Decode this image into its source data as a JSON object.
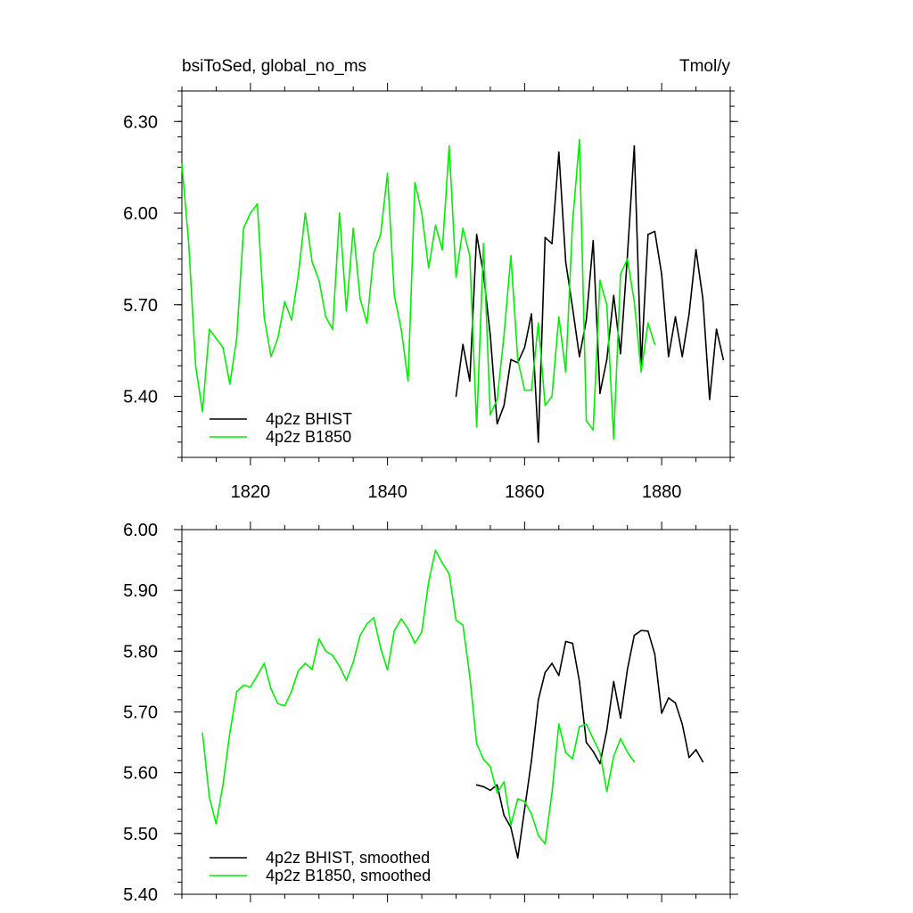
{
  "chart_data": [
    {
      "type": "line",
      "title": "bsiToSed, global_no_ms",
      "units": "Tmol/y",
      "xlim": [
        1810,
        1890
      ],
      "ylim": [
        5.2,
        6.4
      ],
      "x_ticks": [
        "1820",
        "1840",
        "1860",
        "1880"
      ],
      "y_ticks": [
        "5.40",
        "5.70",
        "6.00",
        "6.30"
      ],
      "grid": false,
      "legend_position": "bottom-left",
      "colors": {
        "4p2z BHIST": "#000000",
        "4p2z B1850": "#00ee00"
      },
      "series": [
        {
          "name": "4p2z BHIST",
          "x": [
            1850,
            1851,
            1852,
            1853,
            1854,
            1855,
            1856,
            1857,
            1858,
            1859,
            1860,
            1861,
            1862,
            1863,
            1864,
            1865,
            1866,
            1867,
            1868,
            1869,
            1870,
            1871,
            1872,
            1873,
            1874,
            1875,
            1876,
            1877,
            1878,
            1879,
            1880,
            1881,
            1882,
            1883,
            1884,
            1885,
            1886,
            1887,
            1888,
            1889
          ],
          "y": [
            5.4,
            5.57,
            5.45,
            5.93,
            5.8,
            5.6,
            5.31,
            5.37,
            5.52,
            5.51,
            5.56,
            5.67,
            5.25,
            5.92,
            5.9,
            6.2,
            5.84,
            5.69,
            5.53,
            5.65,
            5.91,
            5.41,
            5.52,
            5.73,
            5.54,
            5.86,
            6.22,
            5.5,
            5.93,
            5.94,
            5.8,
            5.53,
            5.66,
            5.53,
            5.67,
            5.88,
            5.72,
            5.39,
            5.62,
            5.52
          ]
        },
        {
          "name": "4p2z B1850",
          "x": [
            1810,
            1811,
            1812,
            1813,
            1814,
            1815,
            1816,
            1817,
            1818,
            1819,
            1820,
            1821,
            1822,
            1823,
            1824,
            1825,
            1826,
            1827,
            1828,
            1829,
            1830,
            1831,
            1832,
            1833,
            1834,
            1835,
            1836,
            1837,
            1838,
            1839,
            1840,
            1841,
            1842,
            1843,
            1844,
            1845,
            1846,
            1847,
            1848,
            1849,
            1850,
            1851,
            1852,
            1853,
            1854,
            1855,
            1856,
            1857,
            1858,
            1859,
            1860,
            1861,
            1862,
            1863,
            1864,
            1865,
            1866,
            1867,
            1868,
            1869,
            1870,
            1871,
            1872,
            1873,
            1874,
            1875,
            1876,
            1877,
            1878,
            1879
          ],
          "y": [
            6.16,
            5.9,
            5.5,
            5.35,
            5.62,
            5.59,
            5.56,
            5.44,
            5.59,
            5.95,
            6.0,
            6.03,
            5.66,
            5.53,
            5.59,
            5.71,
            5.65,
            5.8,
            6.0,
            5.84,
            5.78,
            5.66,
            5.62,
            6.0,
            5.68,
            5.95,
            5.72,
            5.64,
            5.87,
            5.93,
            6.13,
            5.73,
            5.62,
            5.45,
            6.1,
            6.0,
            5.82,
            5.96,
            5.88,
            6.22,
            5.79,
            5.95,
            5.86,
            5.3,
            5.9,
            5.34,
            5.39,
            5.6,
            5.86,
            5.52,
            5.42,
            5.42,
            5.64,
            5.37,
            5.4,
            5.66,
            5.48,
            5.97,
            6.24,
            5.32,
            5.29,
            5.78,
            5.7,
            5.26,
            5.8,
            5.85,
            5.71,
            5.48,
            5.64,
            5.57
          ]
        }
      ]
    },
    {
      "type": "line",
      "title": "",
      "xlim": [
        1810,
        1890
      ],
      "ylim": [
        5.4,
        6.0
      ],
      "y_ticks": [
        "5.40",
        "5.50",
        "5.60",
        "5.70",
        "5.80",
        "5.90",
        "6.00"
      ],
      "grid": false,
      "legend_position": "bottom-left",
      "colors": {
        "4p2z BHIST, smoothed": "#000000",
        "4p2z B1850, smoothed": "#00ee00"
      },
      "series": [
        {
          "name": "4p2z BHIST, smoothed",
          "x": [
            1853,
            1854,
            1855,
            1856,
            1857,
            1858,
            1859,
            1860,
            1861,
            1862,
            1863,
            1864,
            1865,
            1866,
            1867,
            1868,
            1869,
            1870,
            1871,
            1872,
            1873,
            1874,
            1875,
            1876,
            1877,
            1878,
            1879,
            1880,
            1881,
            1882,
            1883,
            1884,
            1885,
            1886
          ],
          "y": [
            5.58,
            5.577,
            5.571,
            5.58,
            5.53,
            5.51,
            5.46,
            5.54,
            5.62,
            5.72,
            5.765,
            5.78,
            5.76,
            5.816,
            5.813,
            5.75,
            5.65,
            5.635,
            5.615,
            5.67,
            5.75,
            5.69,
            5.77,
            5.826,
            5.834,
            5.833,
            5.795,
            5.698,
            5.723,
            5.715,
            5.68,
            5.625,
            5.638,
            5.618
          ]
        },
        {
          "name": "4p2z B1850, smoothed",
          "x": [
            1813,
            1814,
            1815,
            1816,
            1817,
            1818,
            1819,
            1820,
            1821,
            1822,
            1823,
            1824,
            1825,
            1826,
            1827,
            1828,
            1829,
            1830,
            1831,
            1832,
            1833,
            1834,
            1835,
            1836,
            1837,
            1838,
            1839,
            1840,
            1841,
            1842,
            1843,
            1844,
            1845,
            1846,
            1847,
            1848,
            1849,
            1850,
            1851,
            1852,
            1853,
            1854,
            1855,
            1856,
            1857,
            1858,
            1859,
            1860,
            1861,
            1862,
            1863,
            1864,
            1865,
            1866,
            1867,
            1868,
            1869,
            1870,
            1871,
            1872,
            1873,
            1874,
            1875,
            1876
          ],
          "y": [
            5.665,
            5.56,
            5.516,
            5.58,
            5.666,
            5.733,
            5.744,
            5.741,
            5.76,
            5.78,
            5.738,
            5.714,
            5.71,
            5.734,
            5.768,
            5.78,
            5.77,
            5.82,
            5.8,
            5.793,
            5.775,
            5.752,
            5.782,
            5.826,
            5.845,
            5.855,
            5.805,
            5.769,
            5.834,
            5.853,
            5.837,
            5.813,
            5.832,
            5.914,
            5.966,
            5.945,
            5.927,
            5.851,
            5.843,
            5.759,
            5.648,
            5.622,
            5.61,
            5.567,
            5.585,
            5.514,
            5.557,
            5.553,
            5.532,
            5.497,
            5.483,
            5.567,
            5.68,
            5.633,
            5.623,
            5.676,
            5.68,
            5.656,
            5.633,
            5.569,
            5.627,
            5.656,
            5.634,
            5.618
          ]
        }
      ]
    }
  ]
}
